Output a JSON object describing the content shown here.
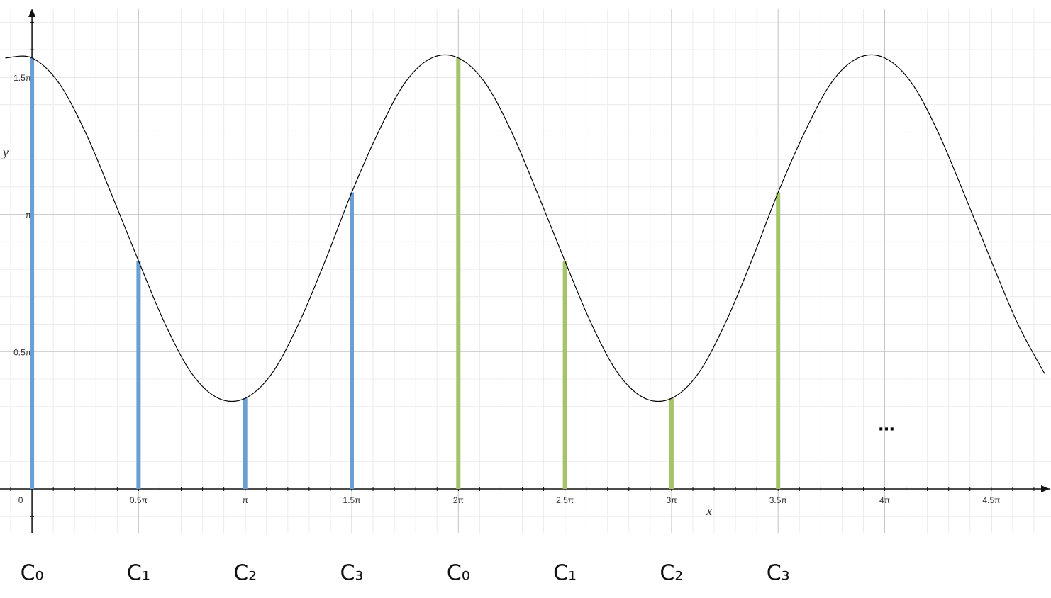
{
  "chart_data": {
    "type": "line",
    "x_label": "x",
    "y_label": "y",
    "xlim": [
      -0.15,
      4.78
    ],
    "ylim": [
      -0.16,
      1.75
    ],
    "xticks": [
      0,
      {
        "value": 0.5,
        "label": "0.5π"
      },
      {
        "value": 1,
        "label": "π"
      },
      {
        "value": 1.5,
        "label": "1.5π"
      },
      {
        "value": 2,
        "label": "2π"
      },
      {
        "value": 2.5,
        "label": "2.5π"
      },
      {
        "value": 3,
        "label": "3π"
      },
      {
        "value": 3.5,
        "label": "3.5π"
      },
      {
        "value": 4,
        "label": "4π"
      },
      {
        "value": 4.5,
        "label": "4.5π"
      }
    ],
    "yticks": [
      {
        "value": 0.5,
        "label": "0.5π"
      },
      {
        "value": 1,
        "label": "π"
      },
      {
        "value": 1.5,
        "label": "1.5π"
      }
    ],
    "grid": true,
    "minor_grid": 0.1,
    "series": [
      {
        "color": "#000000",
        "x": [
          -0.125,
          0,
          0.125,
          0.25,
          0.375,
          0.5,
          0.625,
          0.75,
          0.875,
          1,
          1.125,
          1.25,
          1.375,
          1.5,
          1.625,
          1.75,
          1.875,
          2,
          2.125,
          2.25,
          2.375,
          2.5,
          2.625,
          2.75,
          2.875,
          3,
          3.125,
          3.25,
          3.375,
          3.5,
          3.625,
          3.75,
          3.875,
          4,
          4.125,
          4.25,
          4.375,
          4.5,
          4.625,
          4.75
        ],
        "values": [
          1.57,
          1.57,
          1.48,
          1.3,
          1.07,
          0.83,
          0.6,
          0.42,
          0.33,
          0.33,
          0.42,
          0.6,
          0.83,
          1.08,
          1.3,
          1.48,
          1.57,
          1.57,
          1.48,
          1.3,
          1.07,
          0.83,
          0.6,
          0.42,
          0.33,
          0.33,
          0.42,
          0.6,
          0.83,
          1.08,
          1.3,
          1.48,
          1.57,
          1.57,
          1.48,
          1.3,
          1.07,
          0.83,
          0.6,
          0.42
        ]
      },
      {
        "type": "stem",
        "color": "#6a9fd4",
        "x": [
          0,
          0.5,
          1,
          1.5
        ],
        "values": [
          1.57,
          0.83,
          0.33,
          1.08
        ],
        "labels": [
          "C₀",
          "C₁",
          "C₂",
          "C₃"
        ]
      },
      {
        "type": "stem",
        "color": "#a5c46a",
        "x": [
          2,
          2.5,
          3,
          3.5
        ],
        "values": [
          1.57,
          0.83,
          0.33,
          1.08
        ],
        "labels": [
          "C₀",
          "C₁",
          "C₂",
          "C₃"
        ]
      }
    ],
    "annotations": [
      "..."
    ]
  }
}
